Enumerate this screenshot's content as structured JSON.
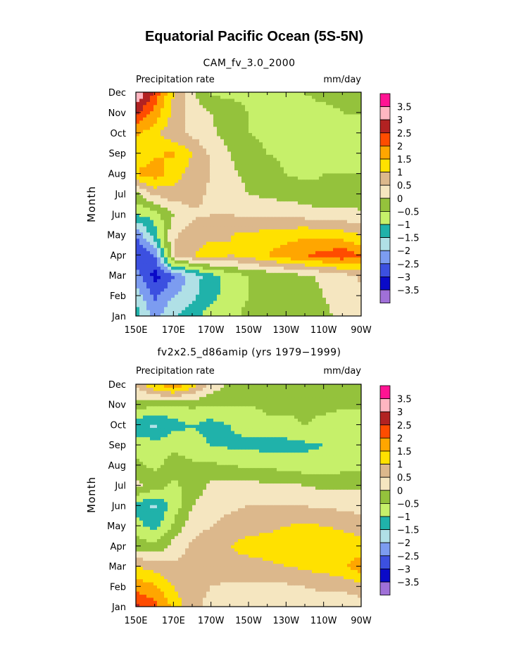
{
  "title": "Equatorial Pacific Ocean (5S-5N)",
  "chart_data": [
    {
      "type": "heatmap",
      "subtitle": "CAM_fv_3.0_2000",
      "left_label": "Precipitation rate",
      "right_label": "mm/day",
      "ylabel": "Month",
      "x_ticks": [
        "150E",
        "170E",
        "170W",
        "150W",
        "130W",
        "110W",
        "90W"
      ],
      "y_ticks": [
        "Jan",
        "Feb",
        "Mar",
        "Apr",
        "May",
        "Jun",
        "Jul",
        "Aug",
        "Sep",
        "Oct",
        "Nov",
        "Dec"
      ],
      "x_range": [
        150,
        270
      ],
      "levels": [
        -3.5,
        -3,
        -2.5,
        -2,
        -1.5,
        -1,
        -0.5,
        0,
        0.5,
        1,
        1.5,
        2,
        2.5,
        3,
        3.5
      ],
      "colorbar_labels": [
        "3.5",
        "3",
        "2.5",
        "2",
        "1.5",
        "1",
        "0.5",
        "0",
        "−0.5",
        "−1",
        "−1.5",
        "−2",
        "−2.5",
        "−3",
        "−3.5"
      ],
      "colors": [
        "#a070d8",
        "#0a0ac8",
        "#3c50e0",
        "#7c9cf0",
        "#b0e0e6",
        "#20b2aa",
        "#c6f06a",
        "#94c23c",
        "#f5e6c0",
        "#dcb88c",
        "#ffe100",
        "#ffa600",
        "#ff4c00",
        "#b22222",
        "#ffb6c1",
        "#ff1493"
      ],
      "x": [
        150,
        160,
        170,
        180,
        190,
        200,
        210,
        220,
        230,
        240,
        250,
        260,
        270
      ],
      "z": [
        [
          -1.2,
          -2.2,
          -1.5,
          -1.3,
          -0.6,
          -0.6,
          -0.4,
          -0.3,
          -0.2,
          -0.2,
          -0.1,
          0.1,
          0.2
        ],
        [
          -1.7,
          -2.6,
          -2.0,
          -1.6,
          -1.2,
          -0.7,
          -0.5,
          -0.4,
          -0.3,
          -0.2,
          0.0,
          0.2,
          0.3
        ],
        [
          -2.2,
          -3.2,
          -2.6,
          -1.8,
          -1.2,
          -0.8,
          -0.5,
          -0.4,
          -0.2,
          -0.1,
          0.1,
          0.3,
          0.6
        ],
        [
          -3.0,
          -2.5,
          0.6,
          1.0,
          1.2,
          1.0,
          1.2,
          1.5,
          1.8,
          2.0,
          2.2,
          2.4,
          2.0
        ],
        [
          -2.5,
          -1.2,
          0.4,
          0.8,
          0.9,
          1.0,
          1.1,
          1.2,
          1.3,
          1.4,
          1.3,
          1.2,
          1.0
        ],
        [
          -1.0,
          -0.8,
          0.0,
          0.4,
          0.5,
          0.5,
          0.4,
          0.4,
          0.4,
          0.3,
          0.2,
          0.2,
          0.1
        ],
        [
          -0.2,
          0.6,
          0.8,
          0.7,
          0.4,
          0.2,
          0.0,
          -0.1,
          -0.2,
          -0.3,
          -0.4,
          -0.3,
          -0.3
        ],
        [
          1.5,
          1.8,
          1.2,
          0.8,
          0.5,
          0.1,
          -0.1,
          -0.3,
          -0.5,
          -0.6,
          -0.5,
          -0.5,
          -0.5
        ],
        [
          1.2,
          1.4,
          1.6,
          1.0,
          0.4,
          0.0,
          -0.3,
          -0.5,
          -0.6,
          -0.6,
          -0.5,
          -0.6,
          -0.5
        ],
        [
          1.6,
          1.2,
          0.6,
          0.4,
          0.1,
          -0.2,
          -0.5,
          -0.6,
          -0.6,
          -0.7,
          -0.8,
          -0.6,
          -0.5
        ],
        [
          2.6,
          1.8,
          0.9,
          0.3,
          0.0,
          -0.3,
          -0.5,
          -0.7,
          -0.6,
          -0.6,
          -0.6,
          -0.5,
          -0.5
        ],
        [
          3.6,
          2.4,
          1.0,
          0.1,
          -0.6,
          -0.6,
          -0.6,
          -0.5,
          -0.5,
          -0.5,
          -0.4,
          -0.4,
          -0.4
        ]
      ]
    },
    {
      "type": "heatmap",
      "subtitle": "fv2x2.5_d86amip (yrs 1979−1999)",
      "left_label": "Precipitation rate",
      "right_label": "mm/day",
      "ylabel": "Month",
      "x_ticks": [
        "150E",
        "170E",
        "170W",
        "150W",
        "130W",
        "110W",
        "90W"
      ],
      "y_ticks": [
        "Jan",
        "Feb",
        "Mar",
        "Apr",
        "May",
        "Jun",
        "Jul",
        "Aug",
        "Sep",
        "Oct",
        "Nov",
        "Dec"
      ],
      "x_range": [
        150,
        270
      ],
      "levels": [
        -3.5,
        -3,
        -2.5,
        -2,
        -1.5,
        -1,
        -0.5,
        0,
        0.5,
        1,
        1.5,
        2,
        2.5,
        3,
        3.5
      ],
      "colorbar_labels": [
        "3.5",
        "3",
        "2.5",
        "2",
        "1.5",
        "1",
        "0.5",
        "0",
        "−0.5",
        "−1",
        "−1.5",
        "−2",
        "−2.5",
        "−3",
        "−3.5"
      ],
      "colors": [
        "#a070d8",
        "#0a0ac8",
        "#3c50e0",
        "#7c9cf0",
        "#b0e0e6",
        "#20b2aa",
        "#c6f06a",
        "#94c23c",
        "#f5e6c0",
        "#dcb88c",
        "#ffe100",
        "#ffa600",
        "#ff4c00",
        "#b22222",
        "#ffb6c1",
        "#ff1493"
      ],
      "x": [
        150,
        160,
        170,
        180,
        190,
        200,
        210,
        220,
        230,
        240,
        250,
        260,
        270
      ],
      "z": [
        [
          2.6,
          2.2,
          1.4,
          0.6,
          0.4,
          0.3,
          0.2,
          0.2,
          0.2,
          0.2,
          0.2,
          0.2,
          0.2
        ],
        [
          1.8,
          1.6,
          1.0,
          0.6,
          0.5,
          0.4,
          0.4,
          0.4,
          0.4,
          0.5,
          0.6,
          0.6,
          0.8
        ],
        [
          1.0,
          0.8,
          0.6,
          0.6,
          0.7,
          0.8,
          0.8,
          0.9,
          1.0,
          1.1,
          1.2,
          1.4,
          1.8
        ],
        [
          -0.2,
          -0.4,
          0.2,
          0.6,
          0.8,
          1.0,
          1.2,
          1.2,
          1.3,
          1.4,
          1.4,
          1.3,
          1.2
        ],
        [
          -0.8,
          -1.2,
          -0.4,
          0.3,
          0.5,
          0.7,
          0.8,
          0.9,
          1.0,
          1.1,
          1.0,
          0.9,
          0.8
        ],
        [
          -1.2,
          -1.6,
          -0.8,
          0.0,
          0.3,
          0.4,
          0.5,
          0.5,
          0.5,
          0.5,
          0.4,
          0.4,
          0.3
        ],
        [
          0.2,
          -0.2,
          -0.6,
          -0.3,
          0.1,
          0.2,
          0.2,
          0.1,
          0.1,
          0.0,
          -0.1,
          -0.1,
          -0.1
        ],
        [
          -0.4,
          -0.6,
          -0.3,
          -0.4,
          -0.4,
          -0.5,
          -0.6,
          -0.6,
          -0.7,
          -0.8,
          -0.8,
          -0.7,
          -0.6
        ],
        [
          -0.6,
          -0.8,
          -0.6,
          -0.8,
          -1.0,
          -1.1,
          -1.1,
          -1.2,
          -1.2,
          -1.1,
          -1.0,
          -0.9,
          -0.8
        ],
        [
          -1.4,
          -1.6,
          -1.2,
          -1.0,
          -1.2,
          -1.0,
          -0.8,
          -0.6,
          -0.6,
          -0.5,
          -0.6,
          -0.8,
          -0.9
        ],
        [
          -0.2,
          -0.4,
          -0.5,
          -0.4,
          -0.5,
          -0.5,
          -0.5,
          -0.4,
          -0.4,
          -0.4,
          -0.4,
          -0.4,
          -0.4
        ],
        [
          0.6,
          1.4,
          2.0,
          1.2,
          0.4,
          -0.2,
          -0.3,
          -0.4,
          -0.4,
          -0.4,
          -0.4,
          -0.3,
          -0.3
        ]
      ]
    }
  ]
}
